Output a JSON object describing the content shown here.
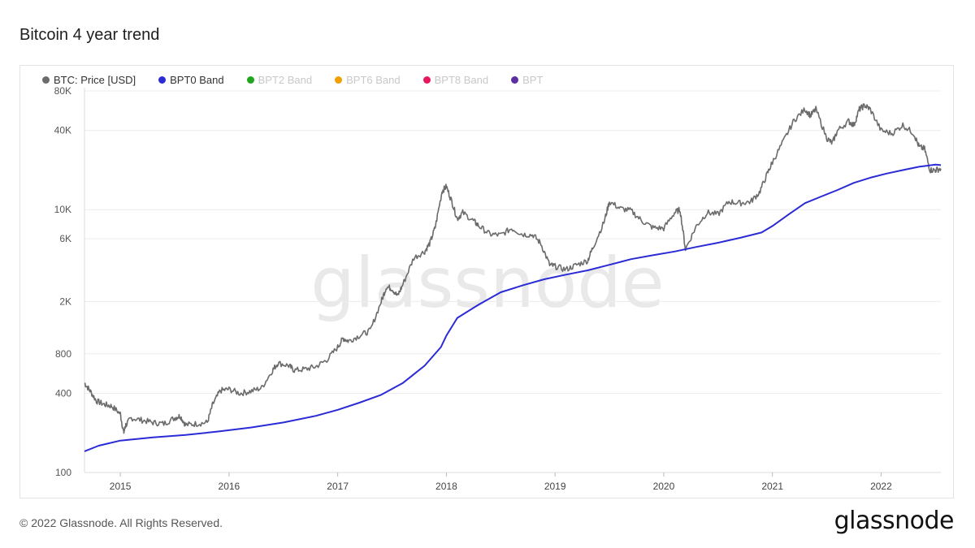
{
  "title": "Bitcoin 4 year trend",
  "footer": "© 2022 Glassnode. All Rights Reserved.",
  "brand": "glassnode",
  "watermark": "glassnode",
  "legend": [
    {
      "label": "BTC: Price [USD]",
      "color": "#6b6b6b",
      "active": true
    },
    {
      "label": "BPT0 Band",
      "color": "#2b2bd6",
      "active": true
    },
    {
      "label": "BPT2 Band",
      "color": "#1fa61f",
      "active": false
    },
    {
      "label": "BPT6 Band",
      "color": "#f0a000",
      "active": false
    },
    {
      "label": "BPT8 Band",
      "color": "#e8175d",
      "active": false
    },
    {
      "label": "BPT",
      "color": "#5a2fa0",
      "active": false
    }
  ],
  "chart_data": {
    "type": "line",
    "yscale": "log",
    "ylim": [
      100,
      80000
    ],
    "xlim": [
      2014.67,
      2022.55
    ],
    "ytick_labels": [
      "80K",
      "40K",
      "10K",
      "6K",
      "2K",
      "800",
      "400",
      "100"
    ],
    "ytick_values": [
      80000,
      40000,
      10000,
      6000,
      2000,
      800,
      400,
      100
    ],
    "xtick_labels": [
      "2015",
      "2016",
      "2017",
      "2018",
      "2019",
      "2020",
      "2021",
      "2022"
    ],
    "xtick_values": [
      2015,
      2016,
      2017,
      2018,
      2019,
      2020,
      2021,
      2022
    ],
    "series": [
      {
        "name": "BTC: Price [USD]",
        "color": "#6b6b6b",
        "x": [
          2014.67,
          2014.72,
          2014.78,
          2014.85,
          2014.92,
          2015.0,
          2015.03,
          2015.05,
          2015.1,
          2015.2,
          2015.3,
          2015.4,
          2015.5,
          2015.55,
          2015.6,
          2015.7,
          2015.8,
          2015.85,
          2015.92,
          2016.0,
          2016.1,
          2016.2,
          2016.3,
          2016.4,
          2016.45,
          2016.55,
          2016.6,
          2016.7,
          2016.8,
          2016.9,
          2017.0,
          2017.05,
          2017.1,
          2017.2,
          2017.3,
          2017.4,
          2017.45,
          2017.5,
          2017.55,
          2017.6,
          2017.7,
          2017.8,
          2017.85,
          2017.9,
          2017.96,
          2018.0,
          2018.05,
          2018.1,
          2018.15,
          2018.25,
          2018.3,
          2018.4,
          2018.5,
          2018.6,
          2018.7,
          2018.8,
          2018.87,
          2018.95,
          2019.0,
          2019.1,
          2019.2,
          2019.3,
          2019.35,
          2019.45,
          2019.5,
          2019.6,
          2019.7,
          2019.8,
          2019.9,
          2020.0,
          2020.1,
          2020.15,
          2020.2,
          2020.3,
          2020.4,
          2020.5,
          2020.6,
          2020.7,
          2020.8,
          2020.88,
          2020.95,
          2021.0,
          2021.1,
          2021.2,
          2021.3,
          2021.35,
          2021.4,
          2021.5,
          2021.55,
          2021.6,
          2021.7,
          2021.75,
          2021.8,
          2021.85,
          2021.9,
          2022.0,
          2022.1,
          2022.2,
          2022.3,
          2022.35,
          2022.4,
          2022.45,
          2022.5,
          2022.55
        ],
        "y": [
          480,
          420,
          350,
          330,
          320,
          280,
          200,
          230,
          260,
          250,
          240,
          235,
          260,
          270,
          230,
          235,
          240,
          330,
          420,
          430,
          400,
          415,
          440,
          600,
          680,
          650,
          600,
          610,
          640,
          720,
          900,
          1050,
          1000,
          1100,
          1200,
          2000,
          2600,
          2500,
          2200,
          2700,
          4300,
          4800,
          5600,
          7500,
          13800,
          15000,
          11500,
          8500,
          9500,
          8200,
          7500,
          6500,
          6400,
          7200,
          6500,
          6400,
          5500,
          3800,
          3700,
          3500,
          3800,
          4100,
          5200,
          8000,
          11500,
          10200,
          9800,
          8200,
          7300,
          7200,
          9500,
          10000,
          5000,
          7500,
          9500,
          9200,
          11500,
          11200,
          11500,
          13500,
          18500,
          23000,
          33000,
          48000,
          58000,
          52000,
          58000,
          35000,
          32000,
          40000,
          47000,
          44000,
          58000,
          62000,
          58000,
          40000,
          38000,
          44000,
          38000,
          30000,
          29000,
          20000,
          20000,
          20500
        ]
      },
      {
        "name": "BPT0 Band",
        "color": "#2b2bd6",
        "x": [
          2014.67,
          2014.8,
          2015.0,
          2015.3,
          2015.6,
          2015.9,
          2016.2,
          2016.5,
          2016.8,
          2017.0,
          2017.2,
          2017.4,
          2017.6,
          2017.8,
          2017.95,
          2018.0,
          2018.1,
          2018.3,
          2018.5,
          2018.7,
          2018.9,
          2019.1,
          2019.3,
          2019.5,
          2019.7,
          2019.9,
          2020.1,
          2020.3,
          2020.5,
          2020.7,
          2020.9,
          2021.0,
          2021.15,
          2021.3,
          2021.45,
          2021.6,
          2021.75,
          2021.9,
          2022.05,
          2022.2,
          2022.35,
          2022.5,
          2022.55
        ],
        "y": [
          145,
          160,
          175,
          185,
          193,
          205,
          220,
          240,
          270,
          300,
          340,
          390,
          480,
          650,
          900,
          1100,
          1500,
          1900,
          2350,
          2650,
          2950,
          3200,
          3450,
          3800,
          4200,
          4500,
          4800,
          5200,
          5600,
          6100,
          6700,
          7500,
          9200,
          11200,
          12600,
          14100,
          16000,
          17500,
          18800,
          20000,
          21200,
          22000,
          21800
        ]
      }
    ]
  }
}
